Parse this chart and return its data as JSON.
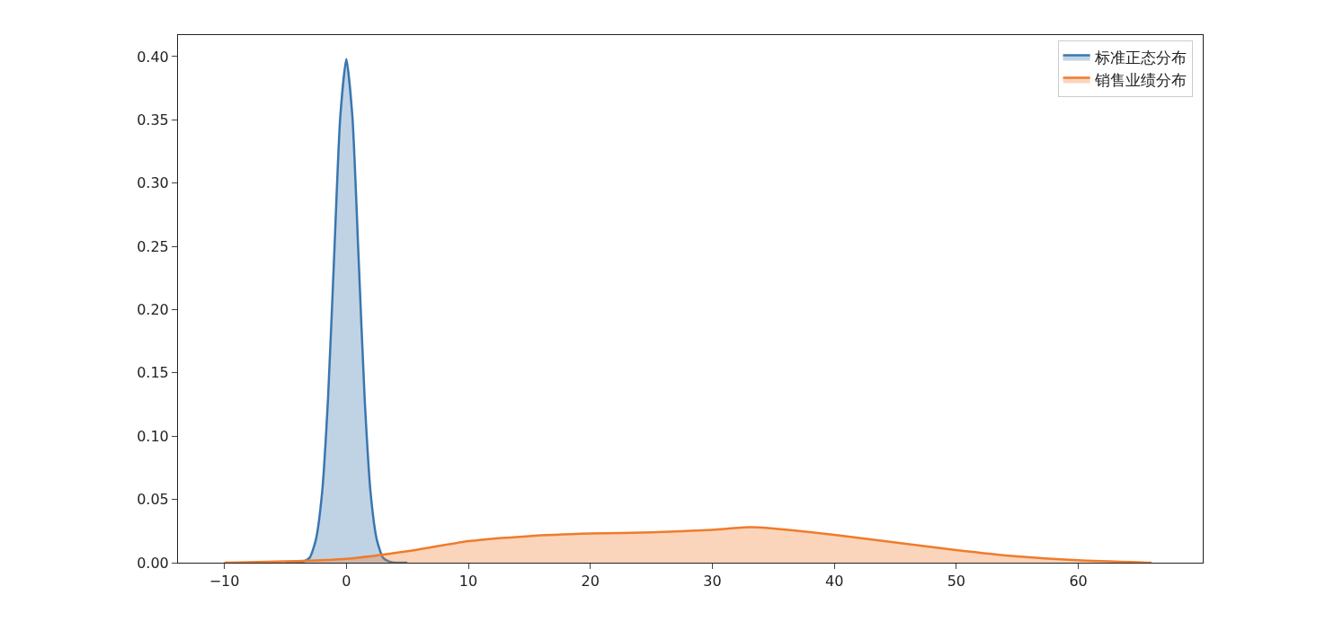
{
  "chart_data": {
    "type": "area",
    "legend": "top right",
    "marker": "none",
    "line_style": "solid",
    "xlim": [
      -13.8,
      70.2
    ],
    "ylim": [
      0,
      0.417
    ],
    "xticks": [
      {
        "value": -10,
        "label": "−10"
      },
      0,
      10,
      20,
      30,
      40,
      50,
      60
    ],
    "yticks": [
      {
        "value": 0,
        "label": "0.00"
      },
      {
        "value": 0.05,
        "label": "0.05"
      },
      {
        "value": 0.1,
        "label": "0.10"
      },
      {
        "value": 0.15,
        "label": "0.15"
      },
      {
        "value": 0.2,
        "label": "0.20"
      },
      {
        "value": 0.25,
        "label": "0.25"
      },
      {
        "value": 0.3,
        "label": "0.30"
      },
      {
        "value": 0.35,
        "label": "0.35"
      },
      {
        "value": 0.4,
        "label": "0.40"
      }
    ],
    "series": [
      {
        "name": "标准正态分布",
        "color": "#3a76af",
        "x": [
          -5,
          -4,
          -3.5,
          -3,
          -2.5,
          -2,
          -1.5,
          -1,
          -0.5,
          0,
          0.5,
          1,
          1.5,
          2,
          2.5,
          3,
          3.5,
          4,
          5
        ],
        "values": [
          0,
          0,
          0.001,
          0.004,
          0.018,
          0.054,
          0.13,
          0.242,
          0.352,
          0.398,
          0.352,
          0.242,
          0.13,
          0.054,
          0.018,
          0.004,
          0.001,
          0,
          0
        ]
      },
      {
        "name": "销售业绩分布",
        "color": "#f07b2c",
        "x": [
          -10,
          -5,
          0,
          5,
          10,
          15,
          20,
          25,
          30,
          33,
          35,
          40,
          45,
          50,
          55,
          60,
          66
        ],
        "values": [
          0,
          0.001,
          0.003,
          0.009,
          0.017,
          0.021,
          0.023,
          0.024,
          0.026,
          0.028,
          0.027,
          0.022,
          0.016,
          0.01,
          0.005,
          0.002,
          0
        ]
      }
    ]
  }
}
